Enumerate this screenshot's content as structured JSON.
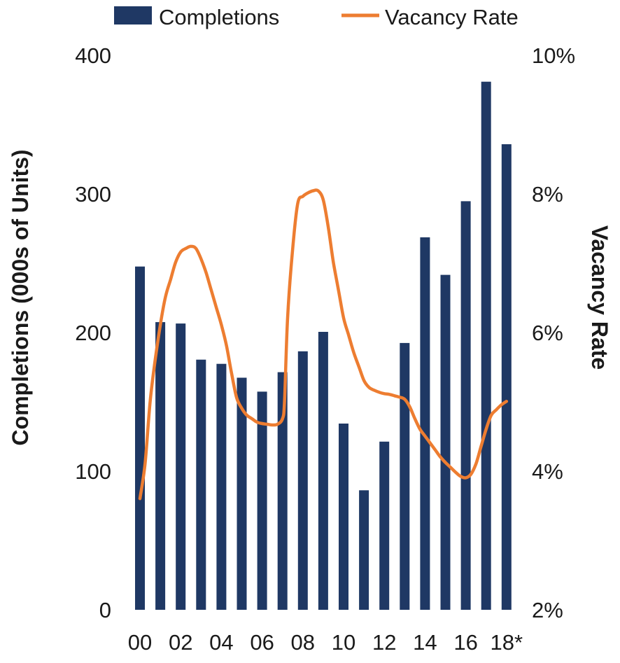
{
  "chart_data": {
    "type": "bar+line",
    "categories": [
      "00",
      "01",
      "02",
      "03",
      "04",
      "05",
      "06",
      "07",
      "08",
      "09",
      "10",
      "11",
      "12",
      "13",
      "14",
      "15",
      "16",
      "17",
      "18*"
    ],
    "x_tick_labels": [
      "00",
      "02",
      "04",
      "06",
      "08",
      "10",
      "12",
      "14",
      "16",
      "18*"
    ],
    "series": [
      {
        "name": "Completions",
        "type": "bar",
        "axis": "left",
        "color": "#1f3864",
        "values": [
          247,
          207,
          206,
          180,
          177,
          167,
          157,
          171,
          186,
          200,
          134,
          86,
          121,
          192,
          268,
          241,
          294,
          380,
          335
        ]
      },
      {
        "name": "Vacancy Rate",
        "type": "line",
        "axis": "right",
        "unit": "%",
        "color": "#ed7d31",
        "x": [
          0,
          0.25,
          0.5,
          0.75,
          1,
          1.25,
          1.5,
          1.75,
          2,
          2.25,
          2.5,
          2.75,
          3,
          3.25,
          3.5,
          3.75,
          4,
          4.25,
          4.5,
          4.75,
          5,
          5.25,
          5.5,
          5.75,
          6,
          6.25,
          6.5,
          6.75,
          7,
          7.1,
          7.25,
          7.5,
          7.75,
          8,
          8.25,
          8.5,
          8.75,
          9,
          9.25,
          9.5,
          9.75,
          10,
          10.25,
          10.5,
          10.75,
          11,
          11.25,
          11.5,
          11.75,
          12,
          12.25,
          12.5,
          12.75,
          13,
          13.25,
          13.5,
          13.75,
          14,
          14.25,
          14.5,
          14.75,
          15,
          15.25,
          15.5,
          15.75,
          16,
          16.25,
          16.5,
          16.75,
          17,
          17.25,
          17.5,
          17.75,
          18
        ],
        "values": [
          3.6,
          4.1,
          5.0,
          5.6,
          6.1,
          6.5,
          6.75,
          7.0,
          7.15,
          7.2,
          7.23,
          7.2,
          7.05,
          6.85,
          6.6,
          6.35,
          6.1,
          5.8,
          5.4,
          5.05,
          4.9,
          4.8,
          4.75,
          4.7,
          4.68,
          4.67,
          4.66,
          4.67,
          4.75,
          5.0,
          6.2,
          7.2,
          7.85,
          7.95,
          8.0,
          8.03,
          8.03,
          7.9,
          7.5,
          7.0,
          6.6,
          6.2,
          5.95,
          5.7,
          5.5,
          5.3,
          5.2,
          5.16,
          5.13,
          5.11,
          5.1,
          5.08,
          5.06,
          5.03,
          4.92,
          4.75,
          4.6,
          4.5,
          4.4,
          4.3,
          4.2,
          4.12,
          4.05,
          3.98,
          3.92,
          3.9,
          3.95,
          4.1,
          4.35,
          4.6,
          4.8,
          4.88,
          4.95,
          5.0
        ]
      }
    ],
    "y_left": {
      "label": "Completions (000s of Units)",
      "range": [
        0,
        400
      ],
      "ticks": [
        "400",
        "300",
        "200",
        "100",
        "0"
      ]
    },
    "y_right": {
      "label": "Vacancy Rate",
      "range": [
        2,
        10
      ],
      "ticks": [
        "10%",
        "8%",
        "6%",
        "4%",
        "2%"
      ]
    },
    "legend": {
      "position": "top",
      "entries": [
        "Completions",
        "Vacancy Rate"
      ]
    },
    "grid": false
  }
}
